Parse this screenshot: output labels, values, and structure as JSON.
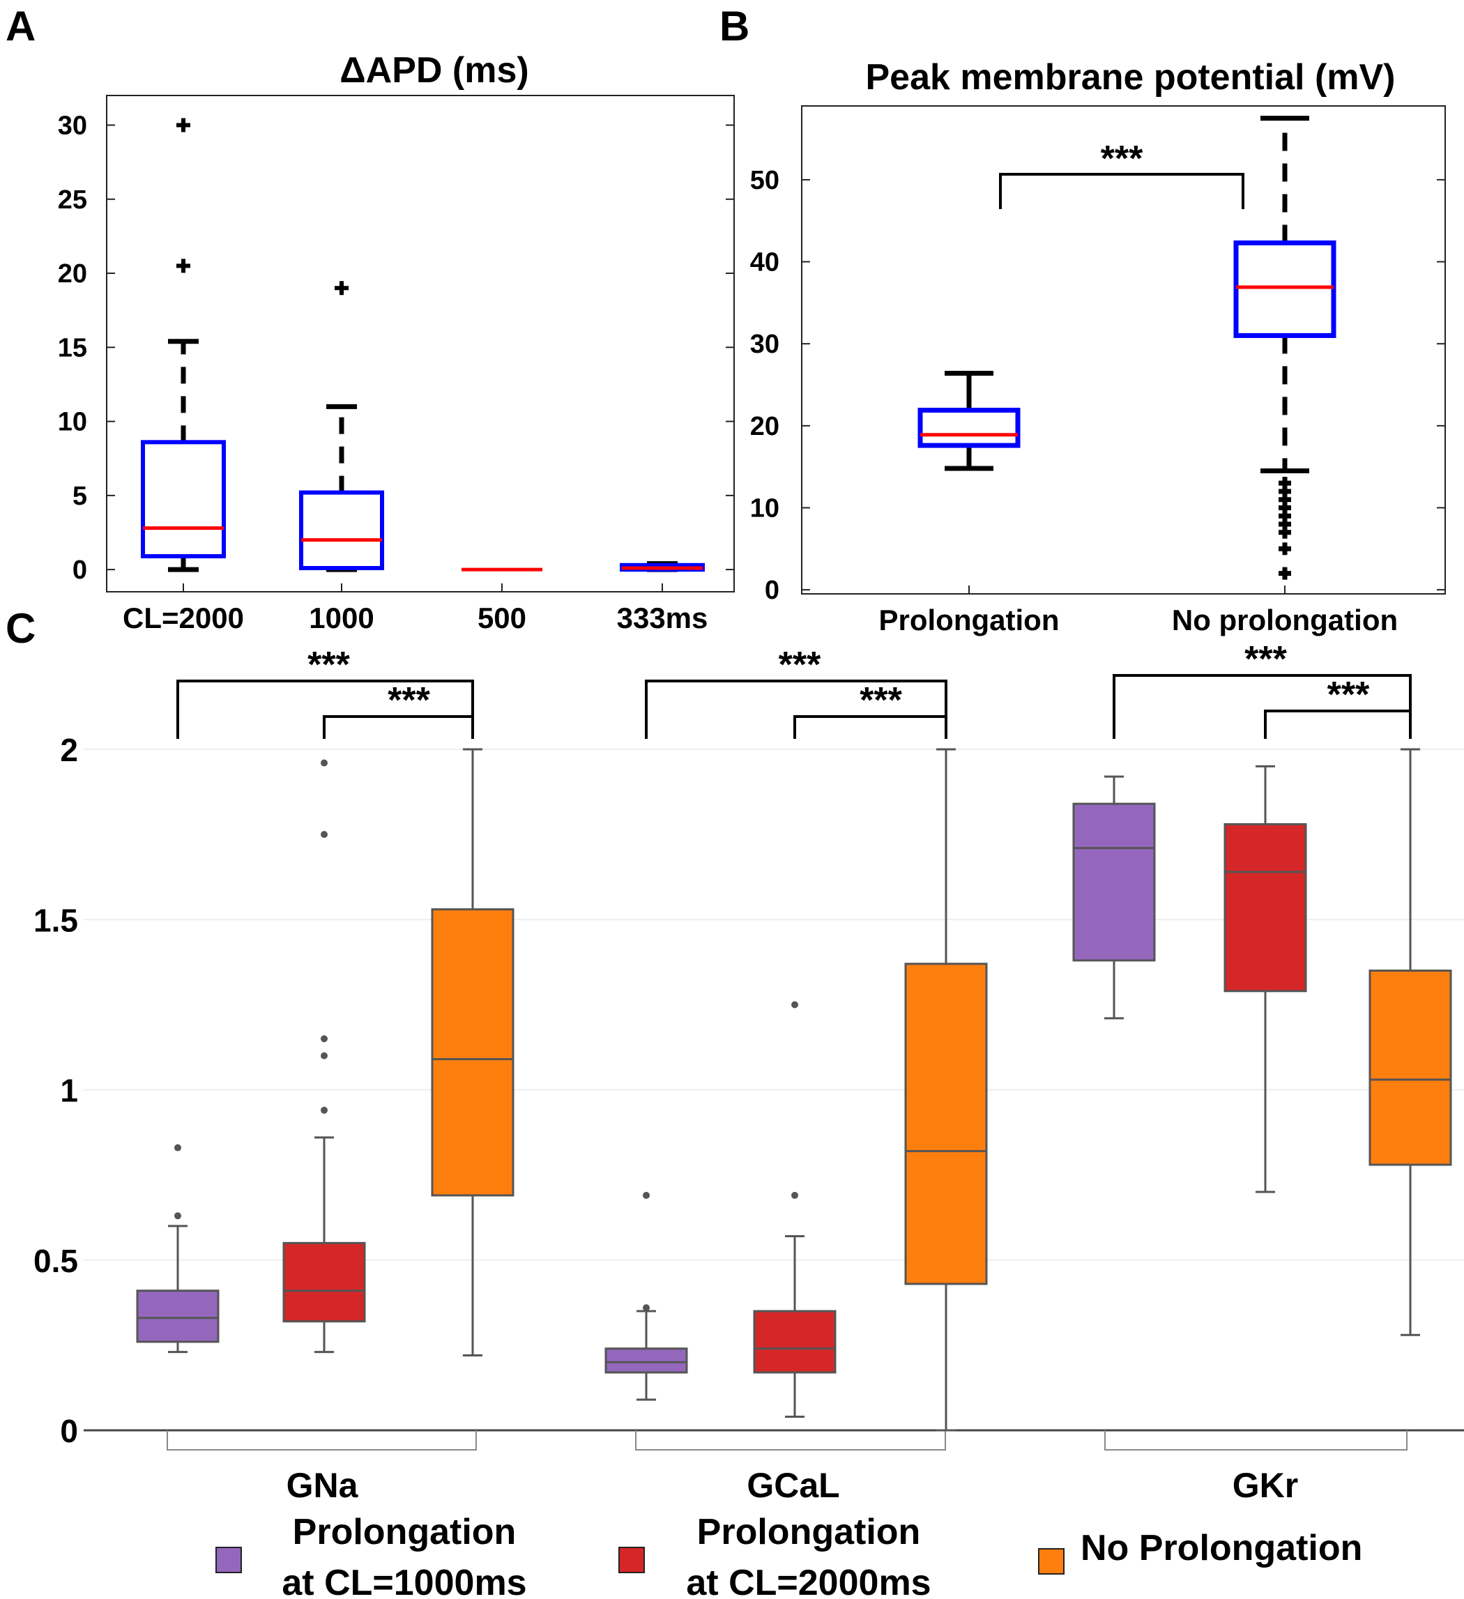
{
  "panel_labels": [
    "A",
    "B",
    "C"
  ],
  "chart_data": [
    {
      "type": "box",
      "panel": "A",
      "title": "ΔAPD (ms)",
      "categories": [
        "CL=2000",
        "1000",
        "500",
        "333ms"
      ],
      "ylim": [
        -1.5,
        32
      ],
      "yticks": [
        0,
        5,
        10,
        15,
        20,
        25,
        30
      ],
      "boxes": [
        {
          "whisker_low": 0,
          "q1": 0.9,
          "median": 2.8,
          "q3": 8.6,
          "whisker_high": 15.4,
          "outliers": [
            20.5,
            30
          ]
        },
        {
          "whisker_low": 0,
          "q1": 0.1,
          "median": 2.0,
          "q3": 5.2,
          "whisker_high": 11.0,
          "outliers": [
            19.0
          ]
        },
        {
          "whisker_low": 0,
          "q1": 0,
          "median": 0,
          "q3": 0,
          "whisker_high": 0,
          "outliers": []
        },
        {
          "whisker_low": 0,
          "q1": 0,
          "median": 0.1,
          "q3": 0.3,
          "whisker_high": 0.4,
          "outliers": []
        }
      ]
    },
    {
      "type": "box",
      "panel": "B",
      "title": "Peak membrane potential (mV)",
      "categories": [
        "Prolongation",
        "No prolongation"
      ],
      "ylim": [
        -0.5,
        59
      ],
      "yticks": [
        0,
        10,
        20,
        30,
        40,
        50
      ],
      "significance": [
        {
          "from": 0,
          "to": 1,
          "label": "***"
        }
      ],
      "boxes": [
        {
          "whisker_low": 14.8,
          "q1": 17.6,
          "median": 18.9,
          "q3": 21.9,
          "whisker_high": 26.4,
          "outliers": []
        },
        {
          "whisker_low": 14.5,
          "q1": 31.0,
          "median": 36.9,
          "q3": 42.3,
          "whisker_high": 57.5,
          "outliers": [
            2,
            5,
            7,
            8,
            9,
            10,
            11,
            12,
            13
          ]
        }
      ]
    },
    {
      "type": "box",
      "panel": "C",
      "groups": [
        "GNa",
        "GCaL",
        "GKr"
      ],
      "ylim": [
        0,
        2
      ],
      "yticks": [
        "0",
        "0.5",
        "1",
        "1.5",
        "2"
      ],
      "series": [
        {
          "name": "Prolongation at CL=1000ms",
          "legend_lines": [
            "Prolongation",
            "at CL=1000ms"
          ],
          "color": "#9467bd"
        },
        {
          "name": "Prolongation at CL=2000ms",
          "legend_lines": [
            "Prolongation",
            "at CL=2000ms"
          ],
          "color": "#d62728"
        },
        {
          "name": "No Prolongation",
          "legend_lines": [
            "No Prolongation"
          ],
          "color": "#ff7f0e"
        }
      ],
      "significance_label": "***",
      "boxes": [
        [
          {
            "whisker_low": 0.23,
            "q1": 0.26,
            "median": 0.33,
            "q3": 0.41,
            "whisker_high": 0.6,
            "outliers": [
              0.63,
              0.83
            ]
          },
          {
            "whisker_low": 0.23,
            "q1": 0.32,
            "median": 0.41,
            "q3": 0.55,
            "whisker_high": 0.86,
            "outliers": [
              0.94,
              1.1,
              1.15,
              1.75,
              1.96
            ]
          },
          {
            "whisker_low": 0.22,
            "q1": 0.69,
            "median": 1.09,
            "q3": 1.53,
            "whisker_high": 2.0,
            "outliers": []
          }
        ],
        [
          {
            "whisker_low": 0.09,
            "q1": 0.17,
            "median": 0.2,
            "q3": 0.24,
            "whisker_high": 0.35,
            "outliers": [
              0.36,
              0.69
            ]
          },
          {
            "whisker_low": 0.04,
            "q1": 0.17,
            "median": 0.24,
            "q3": 0.35,
            "whisker_high": 0.57,
            "outliers": [
              0.69,
              1.25
            ]
          },
          {
            "whisker_low": 0.0,
            "q1": 0.43,
            "median": 0.82,
            "q3": 1.37,
            "whisker_high": 2.0,
            "outliers": []
          }
        ],
        [
          {
            "whisker_low": 1.21,
            "q1": 1.38,
            "median": 1.71,
            "q3": 1.84,
            "whisker_high": 1.92,
            "outliers": []
          },
          {
            "whisker_low": 0.7,
            "q1": 1.29,
            "median": 1.64,
            "q3": 1.78,
            "whisker_high": 1.95,
            "outliers": []
          },
          {
            "whisker_low": 0.28,
            "q1": 0.78,
            "median": 1.03,
            "q3": 1.35,
            "whisker_high": 2.0,
            "outliers": []
          }
        ]
      ]
    }
  ]
}
